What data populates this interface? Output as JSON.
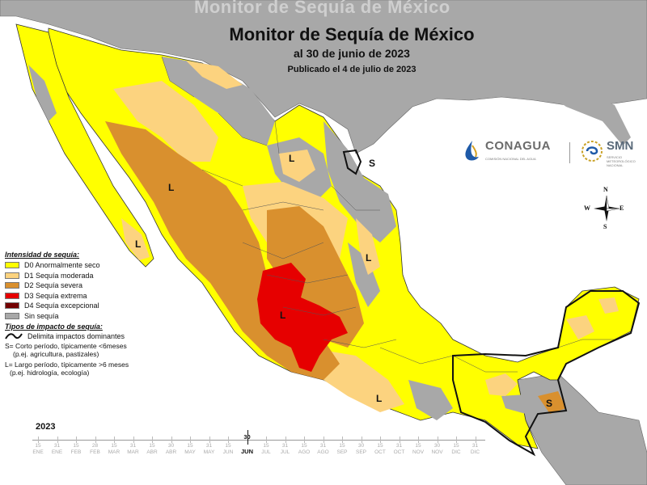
{
  "watermark_title": "Monitor de Sequía de México",
  "title": "Monitor de Sequía de México",
  "subtitle": "al 30 de junio de 2023",
  "published": "Publicado el 4 de julio de 2023",
  "logos": {
    "conagua_name": "CONAGUA",
    "conagua_tagline": "COMISIÓN NACIONAL DEL AGUA",
    "smn_name": "SMN",
    "smn_tagline": "SERVICIO METEOROLÓGICO NACIONAL"
  },
  "compass": {
    "n": "N",
    "s": "S",
    "e": "E",
    "w": "W"
  },
  "legend": {
    "title": "Intensidad de sequía:",
    "items": [
      {
        "label": "D0 Anormalmente seco",
        "color": "#ffff00"
      },
      {
        "label": "D1 Sequía moderada",
        "color": "#fcd37f"
      },
      {
        "label": "D2 Sequía severa",
        "color": "#d9902e"
      },
      {
        "label": "D3 Sequía extrema",
        "color": "#e60000"
      },
      {
        "label": "D4 Sequía excepcional",
        "color": "#730000"
      },
      {
        "label": "Sin sequía",
        "color": "#a8a8a8"
      }
    ],
    "impact_title": "Tipos de impacto de sequía:",
    "impact_line": "Delimita impactos dominantes",
    "short_term_1": "S= Corto período, típicamente <6meses",
    "short_term_2": "(p.ej. agricultura, pastizales)",
    "long_term_1": "L= Largo período, típicamente >6 meses",
    "long_term_2": "(p.ej. hidrología, ecología)"
  },
  "impact_labels": {
    "l_baja": "L",
    "l_sonora": "L",
    "l_coahuila": "L",
    "s_tamaulipas": "S",
    "l_veracruz": "L",
    "l_jalisco": "L",
    "l_oaxaca": "L",
    "s_yucatan": "S"
  },
  "timeline": {
    "year": "2023",
    "days": [
      "15",
      "31",
      "15",
      "28",
      "15",
      "31",
      "15",
      "30",
      "15",
      "31",
      "15",
      "30",
      "15",
      "31",
      "15",
      "31",
      "15",
      "30",
      "15",
      "31",
      "15",
      "30",
      "15",
      "31"
    ],
    "months": [
      "ENE",
      "ENE",
      "FEB",
      "FEB",
      "MAR",
      "MAR",
      "ABR",
      "ABR",
      "MAY",
      "MAY",
      "JUN",
      "JUN",
      "JUL",
      "JUL",
      "AGO",
      "AGO",
      "SEP",
      "SEP",
      "OCT",
      "OCT",
      "NOV",
      "NOV",
      "DIC",
      "DIC"
    ],
    "current_day": "30",
    "current_month": "JUN",
    "current_index": 11
  }
}
